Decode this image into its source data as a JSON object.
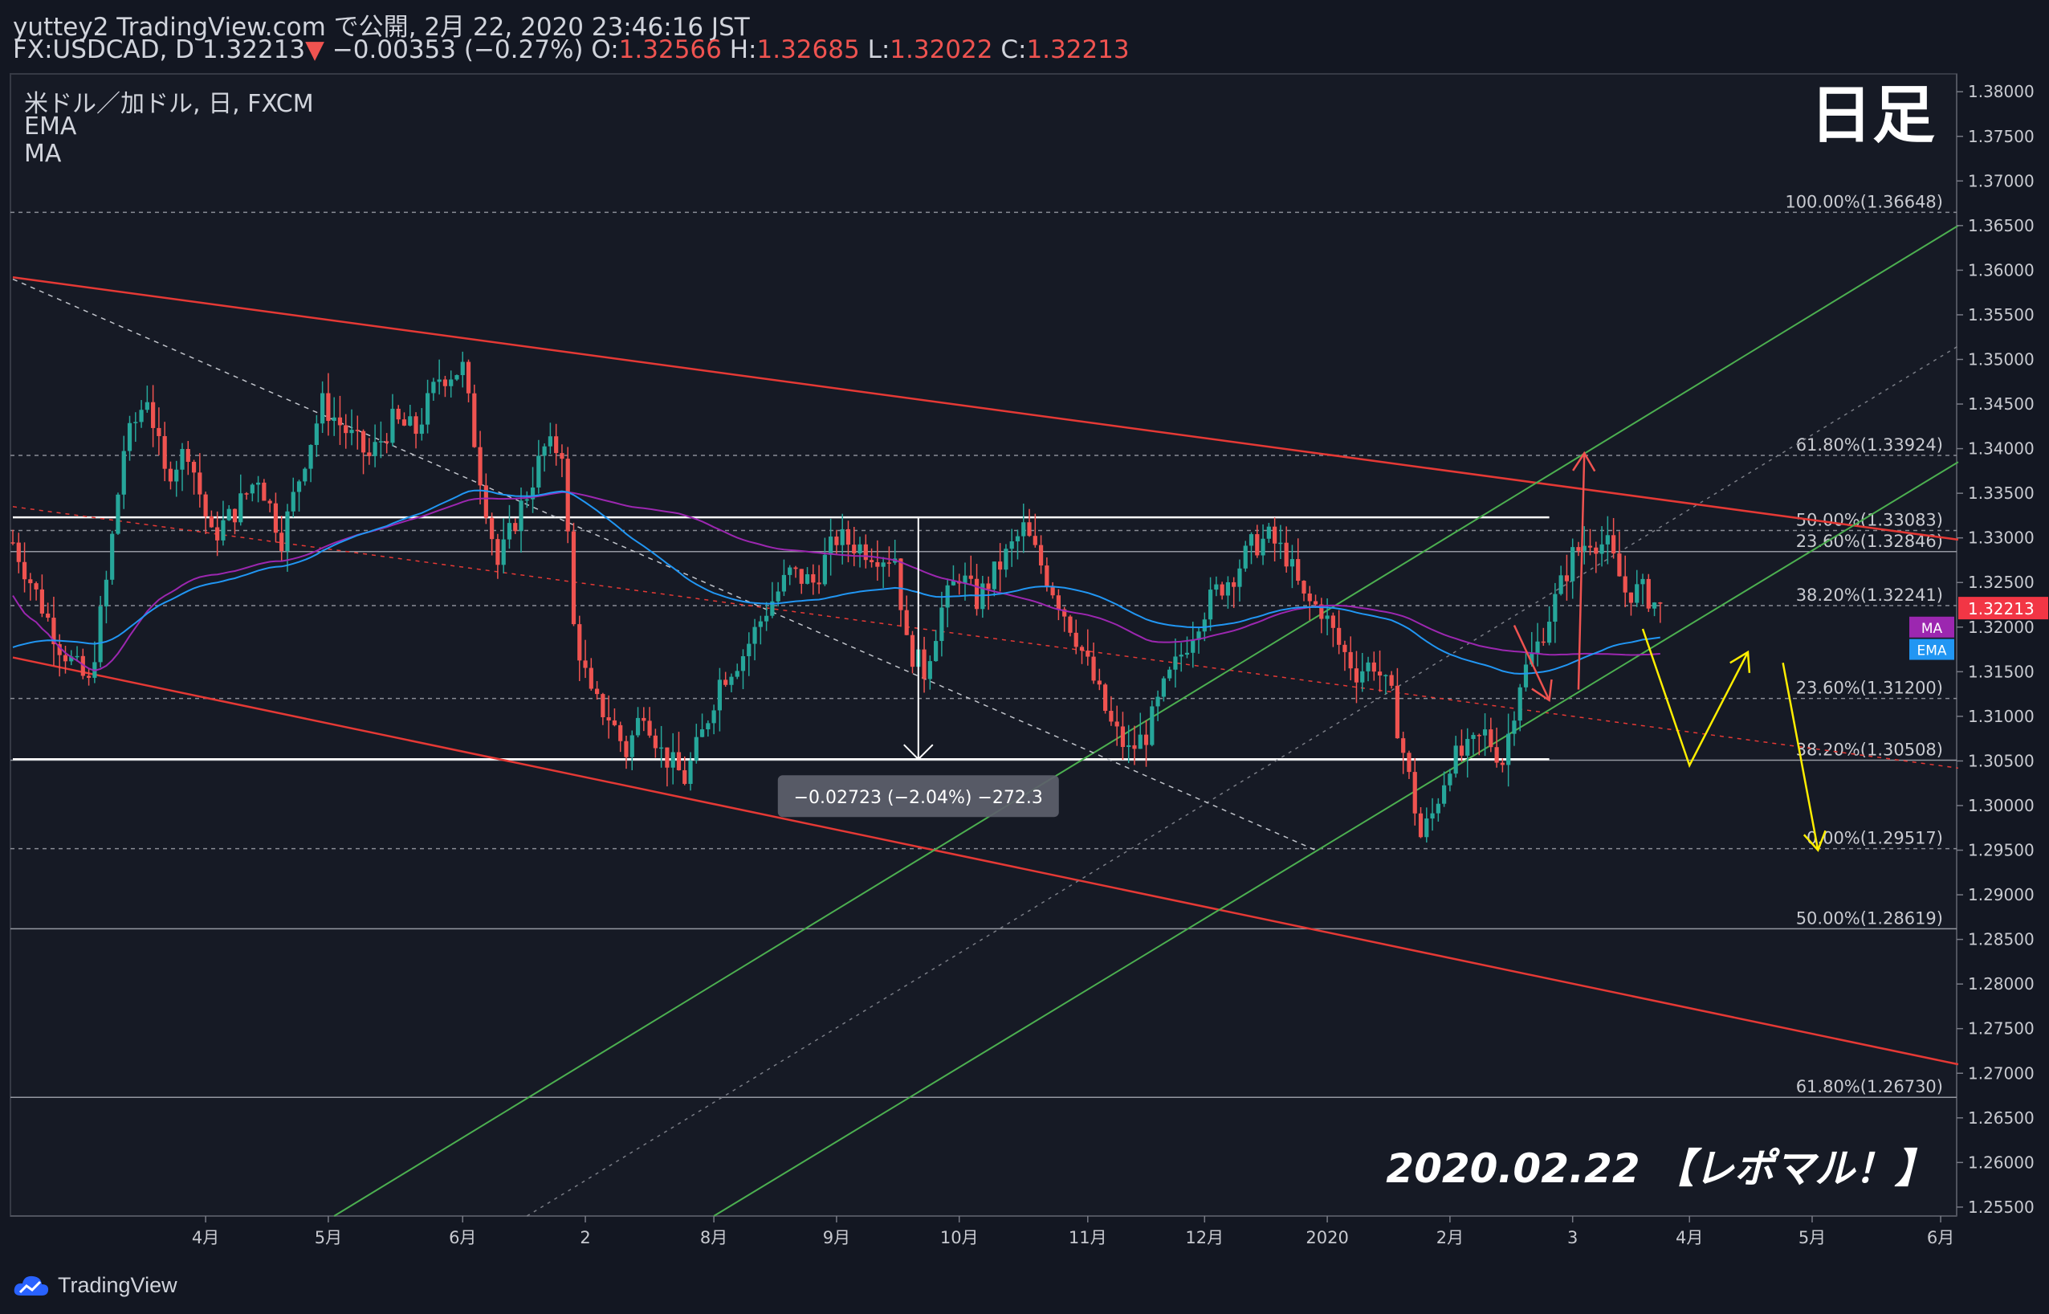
{
  "header": {
    "line1": "yuttey2 TradingView.com で公開, 2月 22, 2020 23:46:16 JST",
    "symbol": "FX:USDCAD, D",
    "last": "1.32213",
    "change": "−0.00353 (−0.27%)",
    "o_label": "O:",
    "o_val": "1.32566",
    "h_label": "H:",
    "h_val": "1.32685",
    "l_label": "L:",
    "l_val": "1.32022",
    "c_label": "C:",
    "c_val": "1.32213"
  },
  "legend": {
    "title": "米ドル／加ドル, 日, FXCM",
    "ind1": "EMA",
    "ind2": "MA"
  },
  "overlay": {
    "corner_title": "日足",
    "date_note": "2020.02.22 【レポマル！】",
    "measure_label": "−0.02723 (−2.04%) −272.3"
  },
  "watermark": {
    "brand": "TradingView"
  },
  "colors": {
    "background": "#131722",
    "pane": "#161a25",
    "up": "#26a69a",
    "down": "#ef5350",
    "ma": "#9c27b0",
    "ema": "#2196f3",
    "channel_red": "#e53935",
    "channel_green": "#4caf50",
    "arrow_yellow": "#ffee00",
    "price_badge": "#f23645"
  },
  "chart_data": {
    "type": "candlestick",
    "symbol": "USDCAD",
    "timeframe": "D",
    "ylim": [
      1.254,
      1.382
    ],
    "y_ticks": [
      "1.38000",
      "1.37500",
      "1.37000",
      "1.36500",
      "1.36000",
      "1.35500",
      "1.35000",
      "1.34500",
      "1.34000",
      "1.33500",
      "1.33000",
      "1.32500",
      "1.32000",
      "1.31500",
      "1.31000",
      "1.30500",
      "1.30000",
      "1.29500",
      "1.29000",
      "1.28500",
      "1.28000",
      "1.27500",
      "1.27000",
      "1.26500",
      "1.26000",
      "1.25500"
    ],
    "x_ticks": [
      {
        "label": "4月",
        "x_idx": 33
      },
      {
        "label": "5月",
        "x_idx": 54
      },
      {
        "label": "6月",
        "x_idx": 77
      },
      {
        "label": "2",
        "x_idx": 98
      },
      {
        "label": "8月",
        "x_idx": 120
      },
      {
        "label": "9月",
        "x_idx": 141
      },
      {
        "label": "10月",
        "x_idx": 162
      },
      {
        "label": "11月",
        "x_idx": 184
      },
      {
        "label": "12月",
        "x_idx": 204
      },
      {
        "label": "2020",
        "x_idx": 225
      },
      {
        "label": "2月",
        "x_idx": 246
      },
      {
        "label": "3",
        "x_idx": 267
      },
      {
        "label": "4月",
        "x_idx": 287
      },
      {
        "label": "5月",
        "x_idx": 308
      },
      {
        "label": "6月",
        "x_idx": 330
      }
    ],
    "price_label": {
      "price": 1.32213,
      "text": "1.32213"
    },
    "indicator_tags": [
      {
        "text": "MA",
        "price": 1.32
      },
      {
        "text": "EMA",
        "price": 1.3175
      }
    ],
    "fib_levels": [
      {
        "price": 1.36648,
        "label": "100.00%(1.36648)",
        "solid": false
      },
      {
        "price": 1.33924,
        "label": "61.80%(1.33924)",
        "solid": false
      },
      {
        "price": 1.33083,
        "label": "50.00%(1.33083)",
        "solid": false
      },
      {
        "price": 1.32846,
        "label": "23.60%(1.32846)",
        "solid": true
      },
      {
        "price": 1.32241,
        "label": "38.20%(1.32241)",
        "solid": false
      },
      {
        "price": 1.312,
        "label": "23.60%(1.31200)",
        "solid": false
      },
      {
        "price": 1.30508,
        "label": "38.20%(1.30508)",
        "solid": true
      },
      {
        "price": 1.29517,
        "label": "0.00%(1.29517)",
        "solid": false
      },
      {
        "price": 1.28619,
        "label": "50.00%(1.28619)",
        "solid": true
      },
      {
        "price": 1.2673,
        "label": "61.80%(1.26730)",
        "solid": true
      }
    ],
    "range_lines": [
      {
        "price": 1.3323,
        "from_idx": 0,
        "to_idx": 263
      },
      {
        "price": 1.3052,
        "from_idx": 0,
        "to_idx": 263
      }
    ],
    "measure": {
      "x_idx": 155,
      "from": 1.3323,
      "to": 1.3052
    },
    "channels_red": [
      {
        "p1": [
          0,
          1.3592
        ],
        "p2": [
          333,
          1.3298
        ],
        "dash": false
      },
      {
        "p1": [
          0,
          1.3335
        ],
        "p2": [
          333,
          1.3042
        ],
        "dash": true
      },
      {
        "p1": [
          0,
          1.3166
        ],
        "p2": [
          333,
          1.271
        ],
        "dash": false
      }
    ],
    "channels_green": [
      {
        "p1": [
          55,
          1.254
        ],
        "p2": [
          333,
          1.365
        ],
        "dash": false
      },
      {
        "p1": [
          120,
          1.254
        ],
        "p2": [
          333,
          1.3385
        ],
        "dash": false
      },
      {
        "p1": [
          88,
          1.254
        ],
        "p2": [
          333,
          1.3515
        ],
        "dash": true
      }
    ],
    "trend_dashed_white": {
      "p1": [
        0,
        1.359
      ],
      "p2": [
        223,
        1.295
      ]
    },
    "projection_arrows": [
      {
        "color": "red",
        "points": [
          [
            257,
            1.3202
          ],
          [
            263,
            1.3118
          ]
        ]
      },
      {
        "color": "red",
        "points": [
          [
            268,
            1.313
          ],
          [
            269,
            1.3395
          ]
        ]
      },
      {
        "color": "yellow",
        "points": [
          [
            279,
            1.3198
          ],
          [
            287,
            1.3045
          ],
          [
            297,
            1.3172
          ]
        ]
      },
      {
        "color": "yellow",
        "points": [
          [
            303,
            1.316
          ],
          [
            309,
            1.295
          ]
        ]
      }
    ]
  }
}
